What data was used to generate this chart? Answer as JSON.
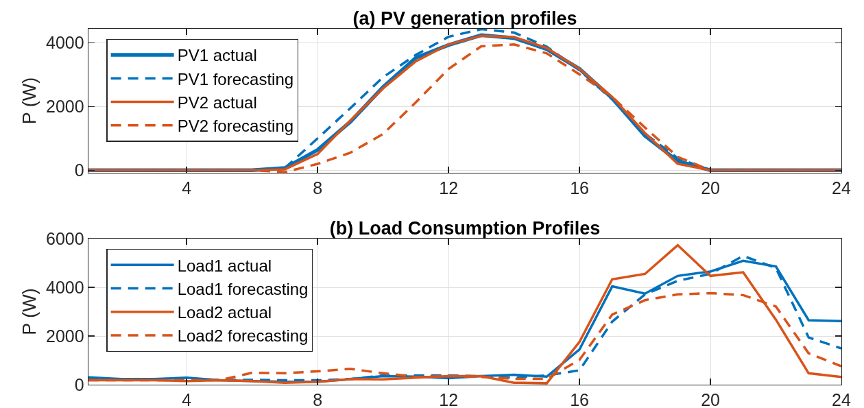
{
  "chart_data": [
    {
      "type": "line",
      "title": "(a) PV generation profiles",
      "ylabel": "P (W)",
      "x": [
        1,
        2,
        3,
        4,
        5,
        6,
        7,
        8,
        9,
        10,
        11,
        12,
        13,
        14,
        15,
        16,
        17,
        18,
        19,
        20,
        21,
        22,
        23,
        24
      ],
      "xlim": [
        1,
        24
      ],
      "ylim": [
        -80,
        4440
      ],
      "xticks": [
        4,
        8,
        12,
        16,
        20,
        24
      ],
      "yticks": [
        0,
        2000,
        4000
      ],
      "grid": true,
      "legend": "top left",
      "series": [
        {
          "name": "PV1 actual",
          "color": "#0072bd",
          "line_style": "solid",
          "values": [
            0,
            0,
            0,
            0,
            0,
            0,
            70,
            640,
            1520,
            2610,
            3530,
            3930,
            4240,
            4150,
            3800,
            3180,
            2260,
            1080,
            290,
            0,
            0,
            0,
            0,
            0
          ]
        },
        {
          "name": "PV1 forecasting",
          "color": "#0072bd",
          "line_style": "dashed",
          "values": [
            null,
            null,
            null,
            null,
            null,
            null,
            70,
            1000,
            1950,
            2920,
            3620,
            4190,
            4430,
            4320,
            3880,
            3140,
            2220,
            1150,
            380,
            0,
            null,
            null,
            null,
            null
          ]
        },
        {
          "name": "PV2 actual",
          "color": "#d95319",
          "line_style": "solid",
          "values": [
            0,
            0,
            0,
            0,
            0,
            0,
            30,
            510,
            1560,
            2570,
            3420,
            3950,
            4220,
            4180,
            3840,
            3180,
            2300,
            1170,
            200,
            0,
            0,
            0,
            0,
            0
          ]
        },
        {
          "name": "PV2 forecasting",
          "color": "#d95319",
          "line_style": "dashed",
          "values": [
            0,
            0,
            0,
            0,
            0,
            0,
            -60,
            200,
            550,
            1140,
            2130,
            3180,
            3890,
            3950,
            3670,
            3010,
            2300,
            1340,
            420,
            0,
            0,
            0,
            0,
            0
          ]
        }
      ]
    },
    {
      "type": "line",
      "title": "(b) Load Consumption Profiles",
      "ylabel": "P (W)",
      "x": [
        1,
        2,
        3,
        4,
        5,
        6,
        7,
        8,
        9,
        10,
        11,
        12,
        13,
        14,
        15,
        16,
        17,
        18,
        19,
        20,
        21,
        22,
        23,
        24
      ],
      "xlim": [
        1,
        24
      ],
      "ylim": [
        0,
        6000
      ],
      "xticks": [
        4,
        8,
        12,
        16,
        20,
        24
      ],
      "yticks": [
        0,
        2000,
        4000,
        6000
      ],
      "grid": true,
      "legend": "top left",
      "series": [
        {
          "name": "Load1 actual",
          "color": "#0072bd",
          "line_style": "solid",
          "values": [
            300,
            230,
            230,
            290,
            180,
            150,
            120,
            120,
            230,
            350,
            330,
            270,
            350,
            410,
            330,
            1450,
            4040,
            3740,
            4470,
            4650,
            5090,
            4860,
            2650,
            2610
          ]
        },
        {
          "name": "Load1 forecasting",
          "color": "#0072bd",
          "line_style": "dashed",
          "values": [
            230,
            230,
            230,
            230,
            200,
            200,
            180,
            180,
            230,
            380,
            380,
            380,
            350,
            290,
            380,
            590,
            2590,
            3710,
            4270,
            4550,
            5290,
            4790,
            1940,
            1490
          ]
        },
        {
          "name": "Load2 actual",
          "color": "#d95319",
          "line_style": "solid",
          "values": [
            180,
            180,
            180,
            150,
            180,
            150,
            80,
            120,
            230,
            220,
            290,
            350,
            350,
            80,
            60,
            1760,
            4330,
            4550,
            5730,
            4470,
            4620,
            2670,
            470,
            320
          ]
        },
        {
          "name": "Load2 forecasting",
          "color": "#d95319",
          "line_style": "dashed",
          "values": [
            180,
            180,
            180,
            180,
            180,
            490,
            470,
            550,
            650,
            470,
            320,
            350,
            320,
            240,
            240,
            1020,
            2880,
            3470,
            3710,
            3760,
            3680,
            3210,
            1290,
            760
          ]
        }
      ]
    }
  ]
}
